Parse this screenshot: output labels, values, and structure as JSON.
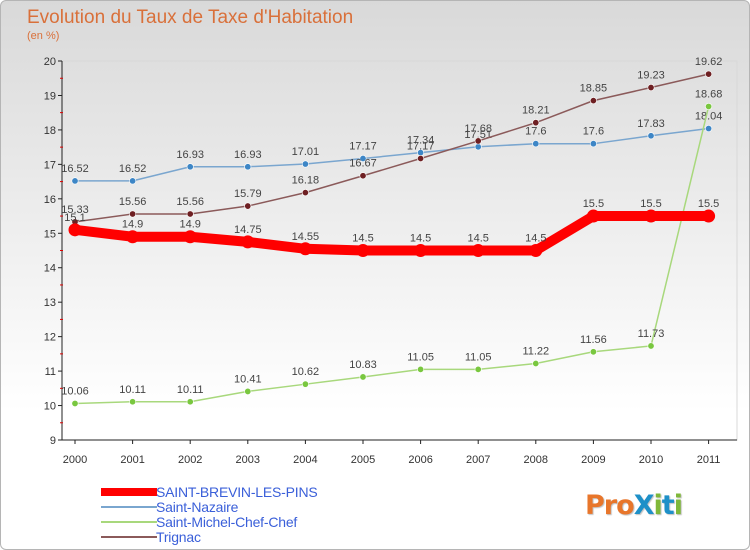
{
  "title": "Evolution du Taux de Taxe d'Habitation",
  "subtitle": "(en %)",
  "logo": {
    "text": "ProXiti",
    "letter_colors": [
      "#e8762b",
      "#e8762b",
      "#e8762b",
      "#1e90c8",
      "#7fb83a",
      "#1e90c8",
      "#7fb83a"
    ]
  },
  "chart_data": {
    "type": "line",
    "x": [
      "2000",
      "2001",
      "2002",
      "2003",
      "2004",
      "2005",
      "2006",
      "2007",
      "2008",
      "2009",
      "2010",
      "2011"
    ],
    "yticks": [
      "9",
      "10",
      "11",
      "12",
      "13",
      "14",
      "15",
      "16",
      "17",
      "18",
      "19",
      "20"
    ],
    "ylim": [
      9,
      20
    ],
    "grid": false,
    "legend_position": "bottom-left",
    "series": [
      {
        "name": "SAINT-BREVIN-LES-PINS",
        "color": "#ff0000",
        "values": [
          15.1,
          14.9,
          14.9,
          14.75,
          14.55,
          14.5,
          14.5,
          14.5,
          14.5,
          15.5,
          15.5,
          15.5
        ],
        "labels": [
          "15.1",
          "14.9",
          "14.9",
          "14.75",
          "14.55",
          "14.5",
          "14.5",
          "14.5",
          "14.5",
          "15.5",
          "15.5",
          "15.5"
        ]
      },
      {
        "name": "Saint-Nazaire",
        "color": "#7aa6cf",
        "marker": "#3d86c6",
        "values": [
          16.52,
          16.52,
          16.93,
          16.93,
          17.01,
          17.17,
          17.34,
          17.51,
          17.6,
          17.6,
          17.83,
          18.04
        ],
        "labels": [
          "16.52",
          "16.52",
          "16.93",
          "16.93",
          "17.01",
          "17.17",
          "17.34",
          "17.51",
          "17.6",
          "17.6",
          "17.83",
          "18.04"
        ]
      },
      {
        "name": "Saint-Michel-Chef-Chef",
        "color": "#a8d87c",
        "marker": "#79c73f",
        "values": [
          10.06,
          10.11,
          10.11,
          10.41,
          10.62,
          10.83,
          11.05,
          11.05,
          11.22,
          11.56,
          11.73,
          18.68
        ],
        "labels": [
          "10.06",
          "10.11",
          "10.11",
          "10.41",
          "10.62",
          "10.83",
          "11.05",
          "11.05",
          "11.22",
          "11.56",
          "11.73",
          "18.68"
        ]
      },
      {
        "name": "Trignac",
        "color": "#8b5a5a",
        "marker": "#6e1f22",
        "values": [
          15.33,
          15.56,
          15.56,
          15.79,
          16.18,
          16.67,
          17.17,
          17.68,
          18.21,
          18.85,
          19.23,
          19.62
        ],
        "labels": [
          "15.33",
          "15.56",
          "15.56",
          "15.79",
          "16.18",
          "16.67",
          "17.17",
          "17.68",
          "18.21",
          "18.85",
          "19.23",
          "19.62"
        ]
      }
    ]
  }
}
